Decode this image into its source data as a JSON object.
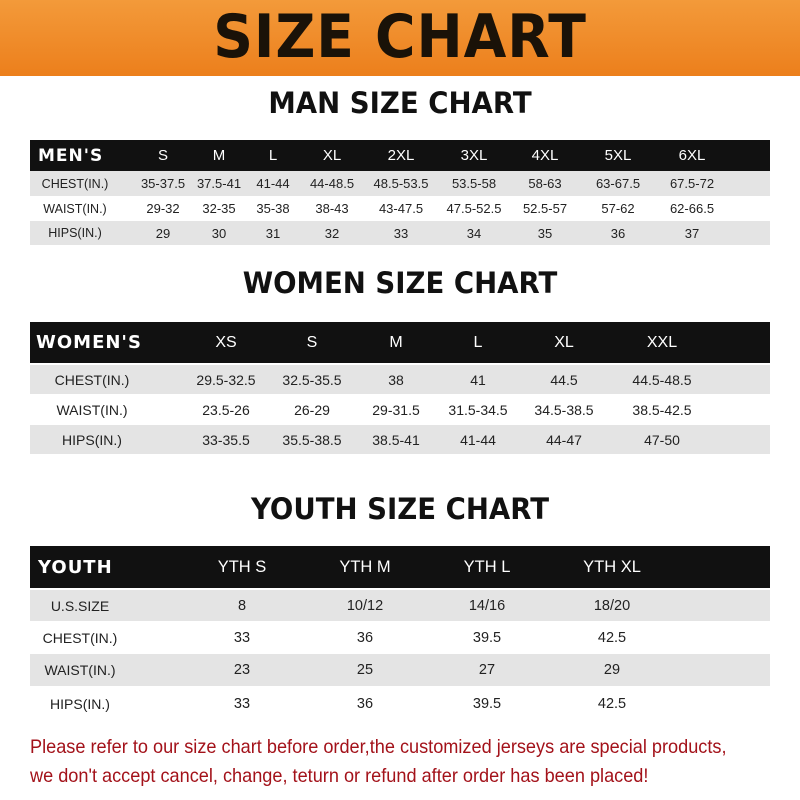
{
  "banner": {
    "title": "SIZE CHART",
    "color": "#ef8a2a"
  },
  "men": {
    "title": "MAN SIZE CHART",
    "header": [
      "MEN'S",
      "S",
      "M",
      "L",
      "XL",
      "2XL",
      "3XL",
      "4XL",
      "5XL",
      "6XL"
    ],
    "rows": [
      [
        "CHEST(IN.)",
        "35-37.5",
        "37.5-41",
        "41-44",
        "44-48.5",
        "48.5-53.5",
        "53.5-58",
        "58-63",
        "63-67.5",
        "67.5-72"
      ],
      [
        "WAIST(IN.)",
        "29-32",
        "32-35",
        "35-38",
        "38-43",
        "43-47.5",
        "47.5-52.5",
        "52.5-57",
        "57-62",
        "62-66.5"
      ],
      [
        "HIPS(IN.)",
        "29",
        "30",
        "31",
        "32",
        "33",
        "34",
        "35",
        "36",
        "37"
      ]
    ]
  },
  "women": {
    "title": "WOMEN SIZE CHART",
    "header": [
      "WOMEN'S",
      "XS",
      "S",
      "M",
      "L",
      "XL",
      "XXL"
    ],
    "rows": [
      [
        "CHEST(IN.)",
        "29.5-32.5",
        "32.5-35.5",
        "38",
        "41",
        "44.5",
        "44.5-48.5"
      ],
      [
        "WAIST(IN.)",
        "23.5-26",
        "26-29",
        "29-31.5",
        "31.5-34.5",
        "34.5-38.5",
        "38.5-42.5"
      ],
      [
        "HIPS(IN.)",
        "33-35.5",
        "35.5-38.5",
        "38.5-41",
        "41-44",
        "44-47",
        "47-50"
      ]
    ]
  },
  "youth": {
    "title": "YOUTH SIZE CHART",
    "header": [
      "YOUTH",
      "YTH S",
      "YTH M",
      "YTH L",
      "YTH XL"
    ],
    "rows": [
      [
        "U.S.SIZE",
        "8",
        "10/12",
        "14/16",
        "18/20"
      ],
      [
        "CHEST(IN.)",
        "33",
        "36",
        "39.5",
        "42.5"
      ],
      [
        "WAIST(IN.)",
        "23",
        "25",
        "27",
        "29"
      ],
      [
        "HIPS(IN.)",
        "33",
        "36",
        "39.5",
        "42.5"
      ]
    ]
  },
  "note": {
    "line1": "Please refer to our size chart before order,the customized jerseys are special products,",
    "line2": "we don't accept cancel, change, teturn or refund after order has been placed!",
    "color": "#a3121a"
  }
}
